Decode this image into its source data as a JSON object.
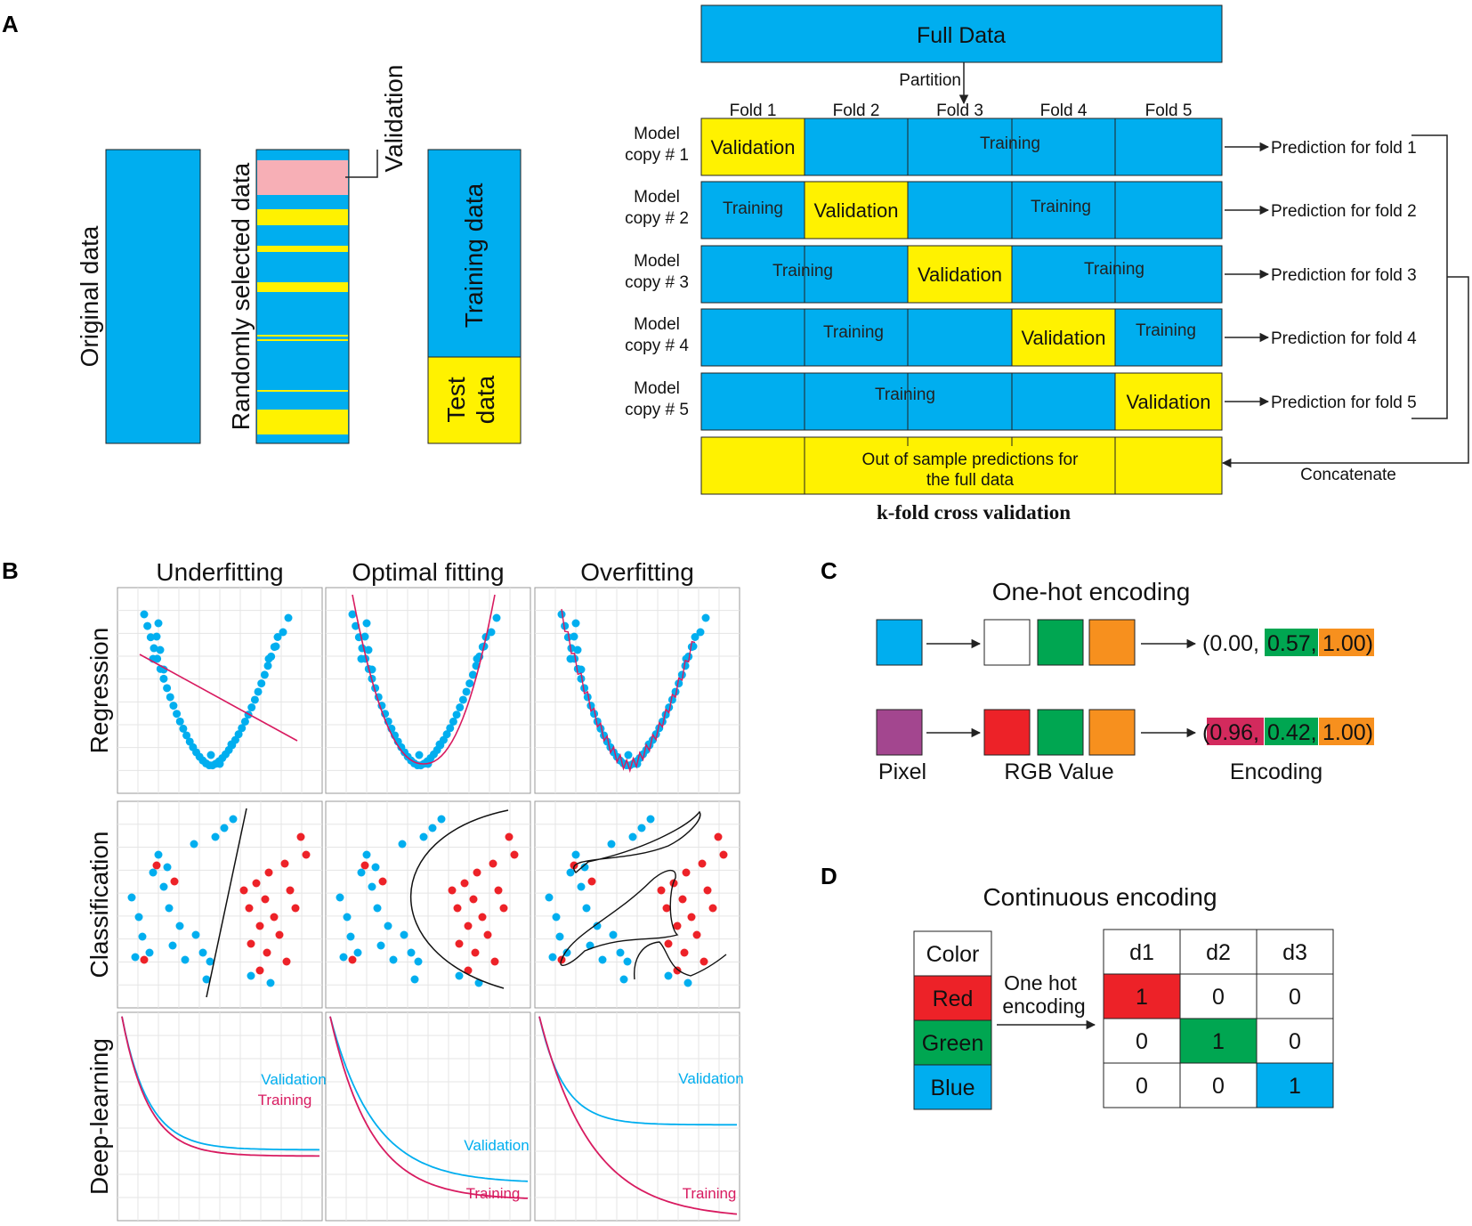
{
  "colors": {
    "blue": "#00AEEF",
    "yellow": "#FFF200",
    "pink": "#F7AFB6",
    "red": "#ED2228",
    "green": "#00A651",
    "orange": "#F7901E",
    "purple": "#A3468F",
    "magenta": "#D32A5D",
    "curveRed": "#D81B60",
    "grid": "#E5E5E5"
  },
  "panelA": {
    "label": "A",
    "original": "Original data",
    "randomly": "Randomly selected data",
    "validation": "Validation",
    "training": "Training data",
    "test": "Test",
    "testData": "data",
    "kfold": {
      "fullData": "Full Data",
      "partition": "Partition",
      "folds": [
        "Fold 1",
        "Fold 2",
        "Fold 3",
        "Fold 4",
        "Fold 5"
      ],
      "models": [
        {
          "l1": "Model",
          "l2": "copy # 1"
        },
        {
          "l1": "Model",
          "l2": "copy # 2"
        },
        {
          "l1": "Model",
          "l2": "copy # 3"
        },
        {
          "l1": "Model",
          "l2": "copy # 4"
        },
        {
          "l1": "Model",
          "l2": "copy # 5"
        }
      ],
      "validationLabel": "Validation",
      "trainingLabel": "Training",
      "predictions": [
        "Prediction for fold 1",
        "Prediction for fold 2",
        "Prediction for fold 3",
        "Prediction for fold 4",
        "Prediction for fold 5"
      ],
      "oos1": "Out of sample predictions for",
      "oos2": "the full data",
      "concatenate": "Concatenate",
      "caption": "k-fold cross validation"
    }
  },
  "panelB": {
    "label": "B",
    "cols": [
      "Underfitting",
      "Optimal fitting",
      "Overfitting"
    ],
    "rows": [
      "Regression",
      "Classification",
      "Deep-learning"
    ],
    "validation": "Validation",
    "training": "Training"
  },
  "panelC": {
    "label": "C",
    "title": "One-hot encoding",
    "row1": {
      "v1": "(0.00,",
      "v2": "0.57,",
      "v3": "1.00)"
    },
    "row2": {
      "v1": "(0.96,",
      "v2": "0.42,",
      "v3": "1.00)"
    },
    "pixel": "Pixel",
    "rgb": "RGB Value",
    "encoding": "Encoding"
  },
  "panelD": {
    "label": "D",
    "title": "Continuous encoding",
    "colorHeader": "Color",
    "colors": [
      "Red",
      "Green",
      "Blue"
    ],
    "oneHot1": "One hot",
    "oneHot2": "encoding",
    "headers": [
      "d1",
      "d2",
      "d3"
    ],
    "matrix": [
      [
        "1",
        "0",
        "0"
      ],
      [
        "0",
        "1",
        "0"
      ],
      [
        "0",
        "0",
        "1"
      ]
    ]
  }
}
